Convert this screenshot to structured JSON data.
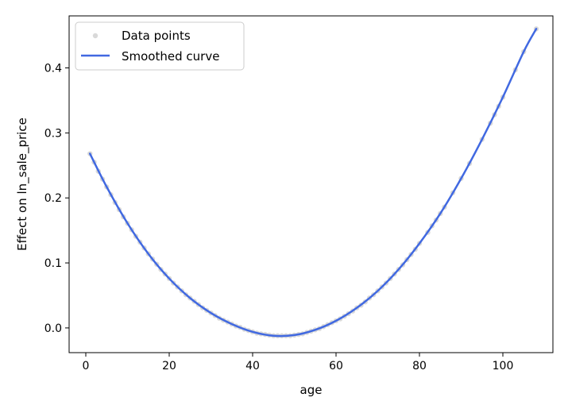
{
  "chart_data": {
    "type": "scatter",
    "title": "",
    "xlabel": "age",
    "ylabel": "Effect on ln_sale_price",
    "xlim": [
      -4,
      112
    ],
    "ylim": [
      -0.038,
      0.48
    ],
    "xticks": [
      0,
      20,
      40,
      60,
      80,
      100
    ],
    "yticks": [
      0.0,
      0.1,
      0.2,
      0.3,
      0.4
    ],
    "ytick_labels": [
      "0.0",
      "0.1",
      "0.2",
      "0.3",
      "0.4"
    ],
    "grid": false,
    "legend_position": "upper-left",
    "colors": {
      "points": "#808080",
      "curve": "#4169e1",
      "legend_border": "#cccccc"
    },
    "series": [
      {
        "name": "Data points",
        "kind": "scatter",
        "points": [
          [
            1,
            0.268
          ],
          [
            2,
            0.255
          ],
          [
            3,
            0.241
          ],
          [
            4,
            0.229
          ],
          [
            5,
            0.217
          ],
          [
            6,
            0.205
          ],
          [
            7,
            0.193
          ],
          [
            8,
            0.182
          ],
          [
            9,
            0.171
          ],
          [
            10,
            0.161
          ],
          [
            11,
            0.151
          ],
          [
            12,
            0.141
          ],
          [
            13,
            0.132
          ],
          [
            14,
            0.123
          ],
          [
            15,
            0.114
          ],
          [
            16,
            0.106
          ],
          [
            17,
            0.098
          ],
          [
            18,
            0.09
          ],
          [
            19,
            0.083
          ],
          [
            20,
            0.076
          ],
          [
            21,
            0.069
          ],
          [
            22,
            0.063
          ],
          [
            23,
            0.057
          ],
          [
            24,
            0.051
          ],
          [
            25,
            0.046
          ],
          [
            26,
            0.041
          ],
          [
            27,
            0.036
          ],
          [
            28,
            0.031
          ],
          [
            29,
            0.027
          ],
          [
            30,
            0.023
          ],
          [
            31,
            0.019
          ],
          [
            32,
            0.015
          ],
          [
            33,
            0.012
          ],
          [
            34,
            0.009
          ],
          [
            35,
            0.006
          ],
          [
            36,
            0.003
          ],
          [
            37,
            0.001
          ],
          [
            38,
            -0.002
          ],
          [
            39,
            -0.004
          ],
          [
            40,
            -0.006
          ],
          [
            41,
            -0.008
          ],
          [
            42,
            -0.009
          ],
          [
            43,
            -0.01
          ],
          [
            44,
            -0.011
          ],
          [
            45,
            -0.012
          ],
          [
            46,
            -0.012
          ],
          [
            47,
            -0.012
          ],
          [
            48,
            -0.012
          ],
          [
            49,
            -0.012
          ],
          [
            50,
            -0.011
          ],
          [
            51,
            -0.01
          ],
          [
            52,
            -0.009
          ],
          [
            53,
            -0.007
          ],
          [
            54,
            -0.005
          ],
          [
            55,
            -0.003
          ],
          [
            56,
            -0.001
          ],
          [
            57,
            0.002
          ],
          [
            58,
            0.005
          ],
          [
            59,
            0.008
          ],
          [
            60,
            0.011
          ],
          [
            61,
            0.014
          ],
          [
            62,
            0.018
          ],
          [
            63,
            0.022
          ],
          [
            64,
            0.026
          ],
          [
            65,
            0.031
          ],
          [
            66,
            0.035
          ],
          [
            67,
            0.04
          ],
          [
            68,
            0.046
          ],
          [
            69,
            0.051
          ],
          [
            70,
            0.057
          ],
          [
            71,
            0.063
          ],
          [
            72,
            0.069
          ],
          [
            73,
            0.076
          ],
          [
            74,
            0.083
          ],
          [
            75,
            0.09
          ],
          [
            76,
            0.097
          ],
          [
            77,
            0.105
          ],
          [
            78,
            0.113
          ],
          [
            79,
            0.121
          ],
          [
            80,
            0.13
          ],
          [
            82,
            0.147
          ],
          [
            83,
            0.157
          ],
          [
            84,
            0.166
          ],
          [
            85,
            0.176
          ],
          [
            86,
            0.186
          ],
          [
            88,
            0.208
          ],
          [
            90,
            0.23
          ],
          [
            92,
            0.253
          ],
          [
            95,
            0.29
          ],
          [
            97,
            0.315
          ],
          [
            98,
            0.328
          ],
          [
            99,
            0.341
          ],
          [
            100,
            0.355
          ],
          [
            103,
            0.397
          ],
          [
            105,
            0.425
          ],
          [
            108,
            0.46
          ]
        ]
      },
      {
        "name": "Smoothed curve",
        "kind": "line",
        "x": [
          1,
          5,
          10,
          15,
          20,
          25,
          30,
          35,
          40,
          45,
          50,
          55,
          60,
          65,
          70,
          75,
          80,
          85,
          90,
          95,
          100,
          105,
          108
        ],
        "y": [
          0.268,
          0.217,
          0.161,
          0.114,
          0.076,
          0.046,
          0.023,
          0.006,
          -0.006,
          -0.012,
          -0.011,
          -0.003,
          0.011,
          0.031,
          0.057,
          0.09,
          0.13,
          0.176,
          0.23,
          0.29,
          0.355,
          0.425,
          0.46
        ]
      }
    ]
  }
}
